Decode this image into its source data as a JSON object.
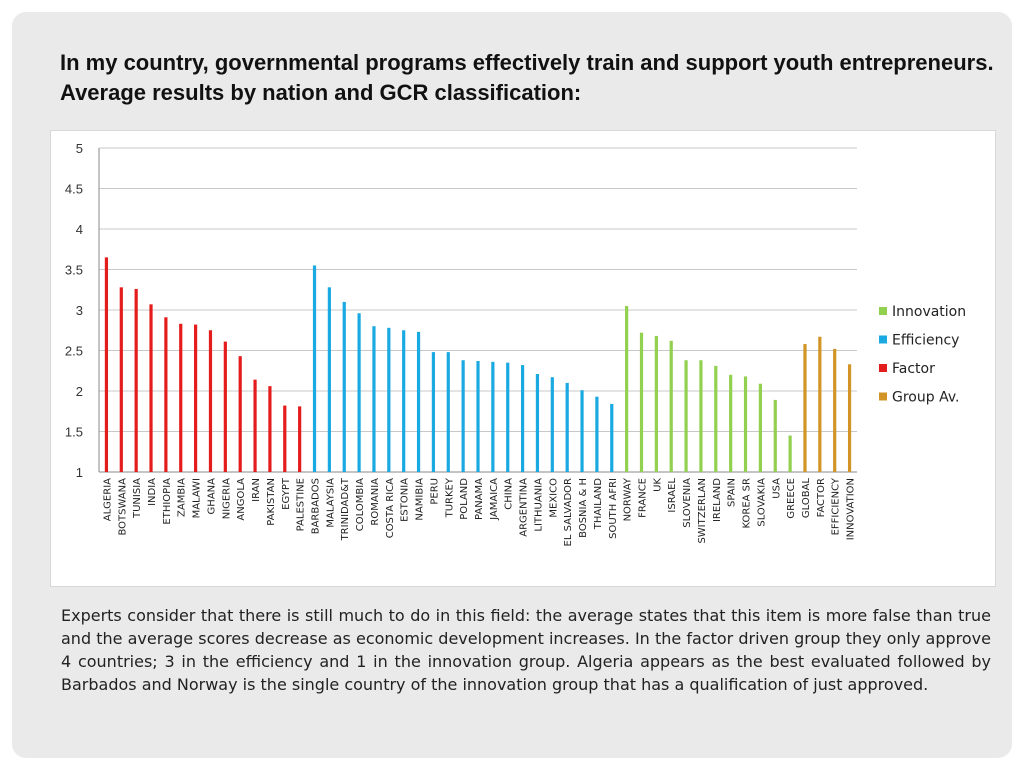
{
  "slide": {
    "title": "In my country, governmental programs effectively train and support youth entrepreneurs. Average results by nation and GCR classification:",
    "body": "Experts consider that there is still much to do in this field: the average states that this item is more false than true and the average scores decrease as economic development increases. In the factor driven group they only approve 4 countries; 3 in the efficiency and 1 in the innovation group. Algeria appears as the best evaluated followed by Barbados and Norway is the single country of the innovation group that has a qualification of just approved."
  },
  "chart_data": {
    "type": "bar",
    "title": "",
    "xlabel": "",
    "ylabel": "",
    "ylim": [
      1,
      5
    ],
    "yticks": [
      "1",
      "1.5",
      "2",
      "2.5",
      "3",
      "3.5",
      "4",
      "4.5",
      "5"
    ],
    "grid": true,
    "legend_position": "right",
    "series": [
      {
        "name": "Innovation",
        "color": "#92d050",
        "categories": [
          "NORWAY",
          "FRANCE",
          "UK",
          "ISRAEL",
          "SLOVENIA",
          "SWITZERLAN",
          "IRELAND",
          "SPAIN",
          "KOREA SR",
          "SLOVAKIA",
          "USA",
          "GREECE"
        ],
        "values": [
          3.05,
          2.72,
          2.68,
          2.62,
          2.38,
          2.38,
          2.31,
          2.2,
          2.18,
          2.09,
          1.89,
          1.45
        ]
      },
      {
        "name": "Efficiency",
        "color": "#1aa9e0",
        "categories": [
          "BARBADOS",
          "MALAYSIA",
          "TRINIDAD&T",
          "COLOMBIA",
          "ROMANIA",
          "COSTA RICA",
          "ESTONIA",
          "NAMIBIA",
          "PERU",
          "TURKEY",
          "POLAND",
          "PANAMA",
          "JAMAICA",
          "CHINA",
          "ARGENTINA",
          "LITHUANIA",
          "MEXICO",
          "EL SALVADOR",
          "BOSNIA & H",
          "THAILAND",
          "SOUTH AFRI"
        ],
        "values": [
          3.55,
          3.28,
          3.1,
          2.96,
          2.8,
          2.78,
          2.75,
          2.73,
          2.48,
          2.48,
          2.38,
          2.37,
          2.36,
          2.35,
          2.32,
          2.21,
          2.17,
          2.1,
          2.01,
          1.93,
          1.84
        ]
      },
      {
        "name": "Factor",
        "color": "#e51c1c",
        "categories": [
          "ALGERIA",
          "BOTSWANA",
          "TUNISIA",
          "INDIA",
          "ETHIOPIA",
          "ZAMBIA",
          "MALAWI",
          "GHANA",
          "NIGERIA",
          "ANGOLA",
          "IRAN",
          "PAKISTAN",
          "EGYPT",
          "PALESTINE"
        ],
        "values": [
          3.65,
          3.28,
          3.26,
          3.07,
          2.91,
          2.83,
          2.82,
          2.75,
          2.61,
          2.43,
          2.14,
          2.06,
          1.82,
          1.81
        ]
      },
      {
        "name": "Group Av.",
        "color": "#d29427",
        "categories": [
          "GLOBAL",
          "FACTOR",
          "EFFICIENCY",
          "INNOVATION"
        ],
        "values": [
          2.58,
          2.67,
          2.52,
          2.33
        ]
      }
    ],
    "order": [
      "Factor",
      "Efficiency",
      "Innovation",
      "Group Av."
    ],
    "legend_order": [
      "Innovation",
      "Efficiency",
      "Factor",
      "Group Av."
    ]
  }
}
